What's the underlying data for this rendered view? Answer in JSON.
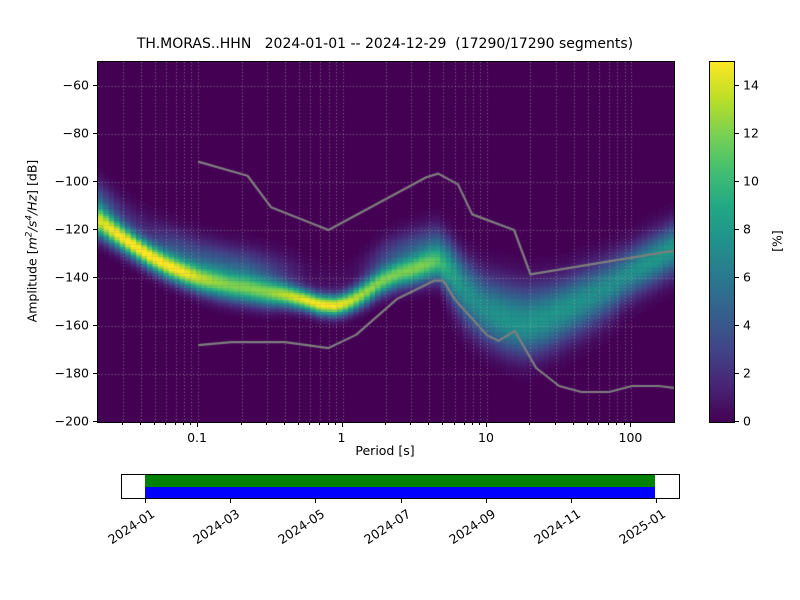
{
  "figure": {
    "title": "TH.MORAS..HHN   2024-01-01 -- 2024-12-29  (17290/17290 segments)",
    "station_id": "TH.MORAS..HHN",
    "date_range": "2024-01-01 -- 2024-12-29",
    "segments_used": 17290,
    "segments_total": 17290,
    "background_color": "#ffffff"
  },
  "chart_data": {
    "type": "heatmap",
    "subtype": "ppsd-probability-density",
    "title": "TH.MORAS..HHN   2024-01-01 -- 2024-12-29  (17290/17290 segments)",
    "xlabel": "Period [s]",
    "ylabel_prefix": "Amplitude [",
    "ylabel_math": "m²/s⁴/Hz",
    "ylabel_suffix": "] [dB]",
    "x_scale": "log",
    "x_range_s": [
      0.0203,
      197
    ],
    "y_range_db": [
      -200,
      -50
    ],
    "x_ticks": [
      0.1,
      1,
      10,
      100
    ],
    "x_tick_labels": [
      "0.1",
      "1",
      "10",
      "100"
    ],
    "y_ticks": [
      -60,
      -80,
      -100,
      -120,
      -140,
      -160,
      -180,
      -200
    ],
    "y_tick_labels": [
      "−60",
      "−80",
      "−100",
      "−120",
      "−140",
      "−160",
      "−180",
      "−200"
    ],
    "grid": {
      "style": "dotted",
      "color": "#9a9a9a",
      "x_minor": true,
      "y_minor": false
    },
    "background_value_color": "#440154",
    "colorbar": {
      "label": "[%]",
      "range_percent": [
        0,
        15
      ],
      "ticks": [
        0,
        2,
        4,
        6,
        8,
        10,
        12,
        14
      ],
      "tick_labels": [
        "0",
        "2",
        "4",
        "6",
        "8",
        "10",
        "12",
        "14"
      ]
    },
    "colormap": {
      "name": "viridis",
      "stops": [
        "#440154",
        "#482475",
        "#414487",
        "#355f8d",
        "#2a788e",
        "#21918c",
        "#22a884",
        "#44bf70",
        "#7ad151",
        "#bddf26",
        "#fde725"
      ]
    },
    "ppsd_mode_ridge": {
      "comment": "probability ridge of the PPSD: mode amplitude, peak probability and gaussian spread per period",
      "periods_s": [
        0.0203,
        0.028,
        0.037,
        0.047,
        0.062,
        0.081,
        0.105,
        0.133,
        0.17,
        0.22,
        0.3,
        0.4,
        0.55,
        0.7,
        0.9,
        1.1,
        1.4,
        1.85,
        2.4,
        3.0,
        3.7,
        4.5,
        5.5,
        7.0,
        9.0,
        11,
        14,
        18,
        25,
        35,
        50,
        70,
        100,
        140,
        197
      ],
      "mode_db": [
        -116,
        -122,
        -127,
        -131,
        -135,
        -138,
        -140.5,
        -142,
        -143.5,
        -144.5,
        -146,
        -147,
        -149,
        -151,
        -151.5,
        -150,
        -146.5,
        -141.5,
        -138.5,
        -137,
        -135,
        -133.5,
        -137.5,
        -145,
        -149.5,
        -151.5,
        -154,
        -155.5,
        -154.5,
        -151.5,
        -147.5,
        -143,
        -137.5,
        -132.5,
        -127.5
      ],
      "peak_percent": [
        13,
        14.5,
        15,
        15,
        14.5,
        14,
        12.5,
        11.5,
        11,
        11,
        11.5,
        13,
        14.5,
        15,
        15,
        14,
        12.5,
        11.5,
        11,
        11,
        11,
        10,
        8,
        6.5,
        6,
        6,
        6,
        6,
        6.5,
        7,
        7,
        7,
        7.5,
        8,
        8
      ],
      "spread_db": [
        4.5,
        4,
        3.8,
        3.8,
        3.8,
        3.8,
        4,
        4.2,
        4.2,
        4.2,
        4,
        3.4,
        3,
        3,
        3,
        3.2,
        3.6,
        3.8,
        4,
        4.2,
        4.6,
        5,
        6.5,
        7.5,
        8,
        8.5,
        9,
        9,
        8.5,
        8,
        8,
        7.5,
        7,
        7,
        7
      ],
      "period_bin_octave_fraction": 0.125,
      "db_bin_width": 1
    },
    "upper_halo": {
      "offset_db": 9,
      "spread_db": 5.5,
      "periods_s": [
        0.0203,
        0.03,
        0.045,
        0.07,
        0.12,
        0.22,
        0.35,
        0.6,
        1.2,
        2.0,
        3.0,
        4.5,
        6.0,
        8.0,
        10
      ],
      "peak_percent": [
        4,
        2,
        1.5,
        3.5,
        4,
        4,
        2.5,
        0.5,
        0.5,
        3,
        4,
        3.5,
        2,
        1,
        0
      ]
    },
    "lower_tail": {
      "offset_db": -9,
      "spread_db": 7,
      "periods_s": [
        5,
        8,
        12,
        20,
        30,
        50,
        80
      ],
      "peak_percent": [
        0.5,
        2,
        3,
        3,
        2,
        1,
        0.5
      ]
    },
    "noise_models": {
      "color": "#7e7e7e",
      "line_width": 2.2,
      "nhnm": {
        "periods_s": [
          0.1,
          0.22,
          0.32,
          0.8,
          3.8,
          4.6,
          6.3,
          7.9,
          15.4,
          20.0,
          354.8
        ],
        "db": [
          -91.5,
          -97.4,
          -110.5,
          -120.0,
          -98.0,
          -96.5,
          -101.0,
          -113.5,
          -120.0,
          -138.5,
          -126.0
        ]
      },
      "nlnm": {
        "periods_s": [
          0.1,
          0.17,
          0.4,
          0.8,
          1.24,
          2.4,
          4.3,
          5.0,
          6.0,
          10.0,
          12.0,
          15.6,
          21.9,
          31.6,
          45.0,
          70.0,
          101.0,
          154.0,
          328.0
        ],
        "db": [
          -168.0,
          -166.7,
          -166.7,
          -169.2,
          -163.7,
          -148.6,
          -141.1,
          -141.1,
          -149.0,
          -163.8,
          -166.2,
          -162.1,
          -177.5,
          -185.0,
          -187.5,
          -187.5,
          -185.0,
          -185.0,
          -187.5
        ]
      }
    },
    "timeline": {
      "tick_labels": [
        "2024-01",
        "2024-03",
        "2024-05",
        "2024-07",
        "2024-09",
        "2024-11",
        "2025-01"
      ],
      "coverage_color": "#008000",
      "data_extent_color": "#0000ff",
      "coverage_start": "2024-01-01",
      "coverage_end": "2024-12-29"
    }
  }
}
